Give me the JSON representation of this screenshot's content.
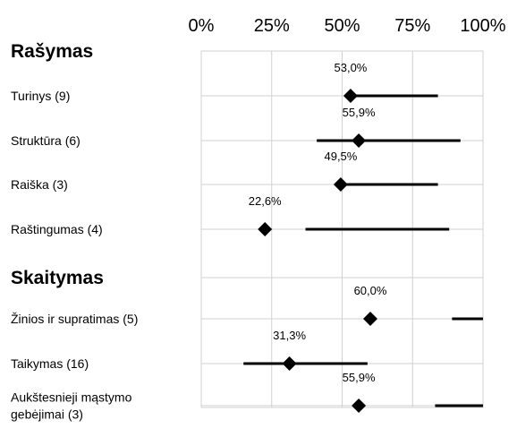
{
  "chart_data": {
    "type": "dot-range",
    "xlim": [
      0,
      100
    ],
    "x_ticks": [
      "0%",
      "25%",
      "50%",
      "75%",
      "100%"
    ],
    "gridlines": true,
    "sections": [
      {
        "title": "Rašymas",
        "items": [
          {
            "label": "Turinys (9)",
            "value": 53.0,
            "value_label": "53,0%",
            "range": [
              53,
              84
            ]
          },
          {
            "label": "Struktūra (6)",
            "value": 55.9,
            "value_label": "55,9%",
            "range": [
              41,
              92
            ]
          },
          {
            "label": "Raiška (3)",
            "value": 49.5,
            "value_label": "49,5%",
            "range": [
              49.5,
              84
            ]
          },
          {
            "label": "Raštingumas (4)",
            "value": 22.6,
            "value_label": "22,6%",
            "range": [
              37,
              88
            ]
          }
        ]
      },
      {
        "title": "Skaitymas",
        "items": [
          {
            "label": "Žinios ir supratimas (5)",
            "value": 60.0,
            "value_label": "60,0%",
            "range": [
              89,
              100
            ]
          },
          {
            "label": "Taikymas (16)",
            "value": 31.3,
            "value_label": "31,3%",
            "range": [
              15,
              59
            ]
          },
          {
            "label": "Aukštesnieji mąstymo gebėjimai (3)",
            "label_lines": [
              "Aukštesnieji mąstymo",
              "gebėjimai (3)"
            ],
            "value": 55.9,
            "value_label": "55,9%",
            "range": [
              83,
              100
            ]
          }
        ]
      }
    ]
  }
}
